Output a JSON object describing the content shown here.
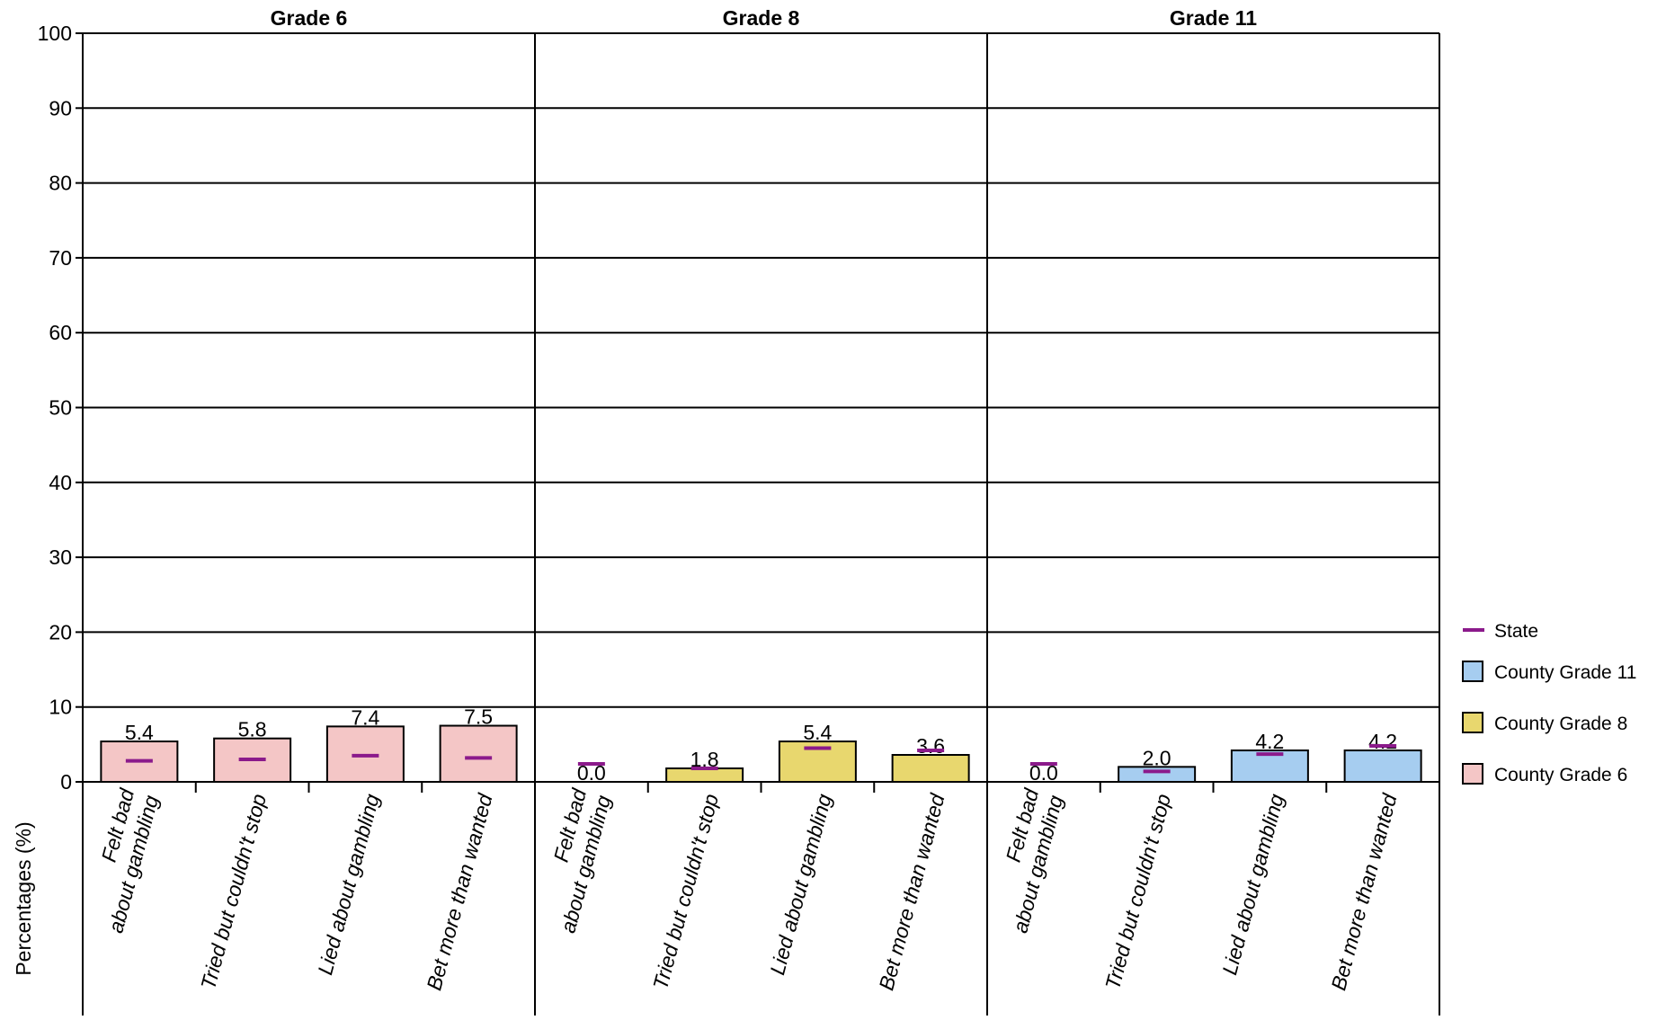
{
  "chart_data": {
    "type": "bar",
    "ylabel": "Percentages (%)",
    "ylim": [
      0,
      100
    ],
    "yticks": [
      "0",
      "10",
      "20",
      "30",
      "40",
      "50",
      "60",
      "70",
      "80",
      "90",
      "100"
    ],
    "grid": true,
    "categories": [
      "Felt bad about gambling",
      "Tried but couldn't stop",
      "Lied about gambling",
      "Bet more than wanted"
    ],
    "category_label_lines": [
      [
        "Felt bad",
        "about gambling"
      ],
      [
        "Tried but couldn't stop"
      ],
      [
        "Lied about gambling"
      ],
      [
        "Bet more than wanted"
      ]
    ],
    "panels": [
      {
        "title": "Grade 6",
        "series_name": "County Grade 6",
        "color": "#f4c6c6",
        "values": [
          5.4,
          5.8,
          7.4,
          7.5
        ],
        "labels": [
          "5.4",
          "5.8",
          "7.4",
          "7.5"
        ],
        "state": [
          2.8,
          3.0,
          3.5,
          3.2
        ]
      },
      {
        "title": "Grade 8",
        "series_name": "County Grade 8",
        "color": "#e8d76e",
        "values": [
          0.0,
          1.8,
          5.4,
          3.6
        ],
        "labels": [
          "0.0",
          "1.8",
          "5.4",
          "3.6"
        ],
        "state": [
          2.4,
          1.8,
          4.5,
          4.2
        ]
      },
      {
        "title": "Grade 11",
        "series_name": "County Grade 11",
        "color": "#a6cdf0",
        "values": [
          0.0,
          2.0,
          4.2,
          4.2
        ],
        "labels": [
          "0.0",
          "2.0",
          "4.2",
          "4.2"
        ],
        "state": [
          2.4,
          1.4,
          3.7,
          4.8
        ]
      }
    ],
    "state_color": "#8b1a8b",
    "legend": {
      "placement": "right",
      "items": [
        {
          "label": "State",
          "kind": "line",
          "color": "#8b1a8b"
        },
        {
          "label": "County Grade 11",
          "kind": "box",
          "color": "#a6cdf0"
        },
        {
          "label": "County Grade 8",
          "kind": "box",
          "color": "#e8d76e"
        },
        {
          "label": "County Grade 6",
          "kind": "box",
          "color": "#f4c6c6"
        }
      ]
    }
  }
}
